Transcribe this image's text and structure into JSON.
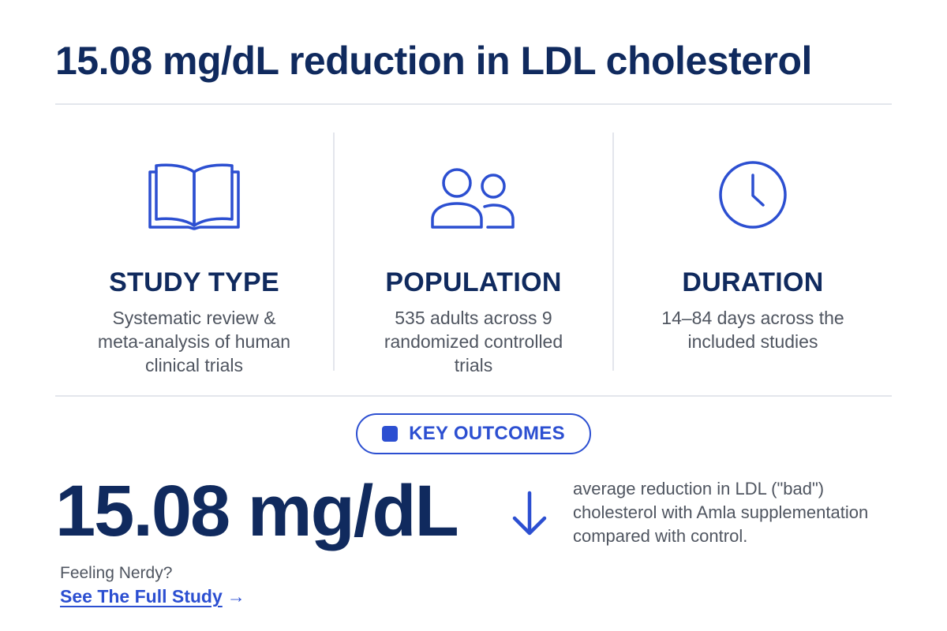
{
  "header": {
    "title": "15.08 mg/dL reduction in LDL cholesterol"
  },
  "stats": [
    {
      "icon": "open-book-icon",
      "title": "STUDY TYPE",
      "description": "Systematic review & meta-analysis of human clinical trials"
    },
    {
      "icon": "people-icon",
      "title": "POPULATION",
      "description": "535 adults across 9 randomized controlled trials"
    },
    {
      "icon": "clock-icon",
      "title": "DURATION",
      "description": "14–84 days across the included studies"
    }
  ],
  "outcomes": {
    "badge_label": "KEY OUTCOMES",
    "value": "15.08 mg/dL",
    "direction_icon": "down-arrow-icon",
    "description": "average reduction in LDL (\"bad\") cholesterol with Amla supplementation compared with control."
  },
  "footer": {
    "prompt": "Feeling Nerdy?",
    "link_label": "See The Full Study",
    "link_arrow": "→"
  },
  "colors": {
    "navy": "#102a5e",
    "accent_blue": "#2c4fd1",
    "body_gray": "#4f5560",
    "divider": "#e3e6ec"
  }
}
